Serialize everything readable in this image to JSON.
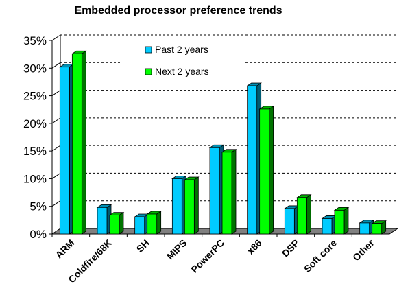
{
  "chart_data": {
    "type": "bar",
    "title": "Embedded processor preference trends",
    "categories": [
      "ARM",
      "Coldfire/68K",
      "SH",
      "MIPS",
      "PowerPC",
      "x86",
      "DSP",
      "Soft core",
      "Other"
    ],
    "series": [
      {
        "name": "Past 2 years",
        "values": [
          30.2,
          4.8,
          3.1,
          10.0,
          15.6,
          26.8,
          4.6,
          2.8,
          2.0
        ],
        "color": "#00ccff"
      },
      {
        "name": "Next 2 years",
        "values": [
          32.6,
          3.4,
          3.6,
          9.8,
          14.8,
          22.6,
          6.6,
          4.3,
          1.9
        ],
        "color": "#00ff00"
      }
    ],
    "ylim": [
      0,
      35
    ],
    "yticks": [
      "0%",
      "5%",
      "10%",
      "15%",
      "20%",
      "25%",
      "30%",
      "35%"
    ],
    "grid": true,
    "legend": "top-center",
    "xlabel": "",
    "ylabel": ""
  }
}
